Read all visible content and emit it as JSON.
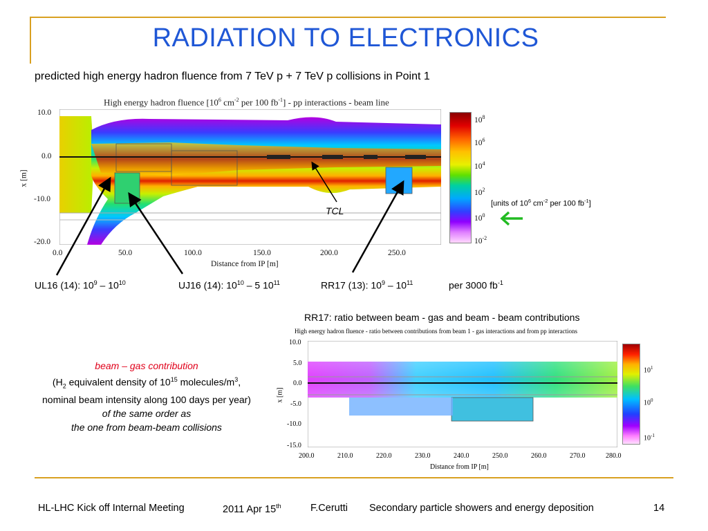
{
  "title": "RADIATION TO ELECTRONICS",
  "subtitle": "predicted high energy hadron fluence from 7 TeV p + 7 TeV p collisions in Point 1",
  "plot1": {
    "title_a": "High energy hadron fluence [10",
    "title_exp1": "6",
    "title_b": " cm",
    "title_exp2": "-2",
    "title_c": " per 100 fb",
    "title_exp3": "-1",
    "title_d": "] - pp interactions - beam line",
    "ylabel": "x [m]",
    "xlabel": "Distance from IP [m]",
    "y_ticks": [
      "10.0",
      "0.0",
      "-10.0",
      "-20.0"
    ],
    "x_ticks": [
      "0.0",
      "50.0",
      "100.0",
      "150.0",
      "200.0",
      "250.0"
    ],
    "colorbar_base": [
      "10",
      "10",
      "10",
      "10",
      "10",
      "10"
    ],
    "colorbar_exp": [
      "8",
      "6",
      "4",
      "2",
      "0",
      "-2"
    ],
    "units_a": "[units of 10",
    "units_e1": "6",
    "units_b": " cm",
    "units_e2": "-2",
    "units_c": " per 100 fb",
    "units_e3": "-1",
    "units_d": "]",
    "tcl_label": "TCL"
  },
  "annotations": {
    "ul16_a": "UL16 (14): 10",
    "ul16_e1": "9",
    "ul16_b": " – 10",
    "ul16_e2": "10",
    "uj16_a": "UJ16 (14): 10",
    "uj16_e1": "10",
    "uj16_b": " – 5 10",
    "uj16_e2": "11",
    "rr17_a": "RR17 (13): 10",
    "rr17_e1": "9",
    "rr17_b": " – 10",
    "rr17_e2": "11",
    "per_a": "per 3000 fb",
    "per_e": "-1"
  },
  "plot2": {
    "heading": "RR17: ratio between beam - gas and beam - beam contributions",
    "title": "High energy hadron fluence - ratio between contributions from beam 1 - gas interactions and from pp interactions",
    "ylabel": "x [m]",
    "xlabel": "Distance from IP [m]",
    "y_ticks": [
      "10.0",
      "5.0",
      "0.0",
      "-5.0",
      "-10.0",
      "-15.0"
    ],
    "x_ticks": [
      "200.0",
      "210.0",
      "220.0",
      "230.0",
      "240.0",
      "250.0",
      "260.0",
      "270.0",
      "280.0"
    ],
    "colorbar_base": [
      "10",
      "10",
      "10"
    ],
    "colorbar_exp": [
      "1",
      "0",
      "-1"
    ]
  },
  "note": {
    "line1": "beam – gas contribution",
    "line2_a": "(H",
    "line2_sub": "2",
    "line2_b": " equivalent density of 10",
    "line2_exp": "15",
    "line2_c": " molecules/m",
    "line2_exp2": "3",
    "line2_d": ",",
    "line3": "nominal beam intensity along 100 days per year)",
    "line4": "of the same order as",
    "line5": "the one from beam-beam collisions"
  },
  "footer": {
    "meeting": "HL-LHC Kick off Internal Meeting",
    "date_a": "2011 Apr 15",
    "date_e": "th",
    "author": "F.Cerutti",
    "topic": "Secondary particle showers and energy deposition",
    "page": "14"
  },
  "colors": {
    "title": "#1f57d6",
    "accent_line": "#d9a020",
    "note_red": "#e0001a",
    "arrow_green": "#22bb22"
  }
}
